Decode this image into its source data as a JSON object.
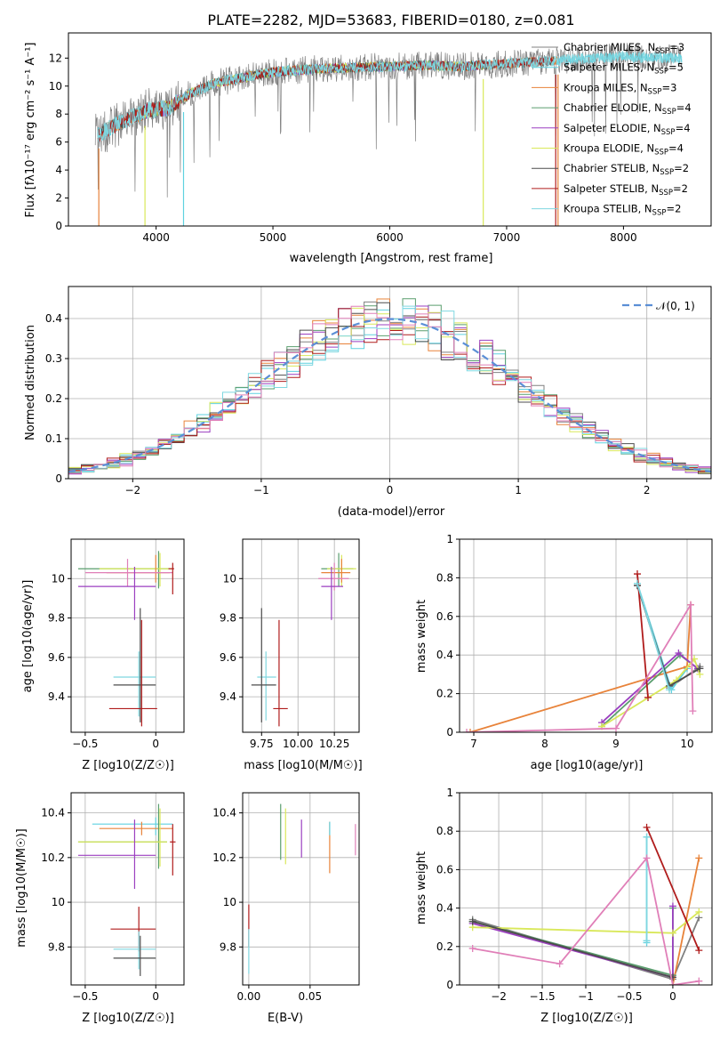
{
  "figure": {
    "title": "PLATE=2282, MJD=53683, FIBERID=0180, z=0.081",
    "palette": {
      "Chabrier MILES": "#808080",
      "Salpeter MILES": "#5fd1e0",
      "Kroupa MILES": "#e8833a",
      "Chabrier ELODIE": "#5a9e6e",
      "Salpeter ELODIE": "#9b3fc0",
      "Kroupa ELODIE": "#d9e85a",
      "Chabrier STELIB": "#4d4d4d",
      "Salpeter STELIB": "#b01c1c",
      "Kroupa STELIB": "#7fd7e0",
      "Pink": "#e07fb8"
    }
  },
  "chart_data": [
    {
      "id": "spectrum",
      "type": "line",
      "xlabel": "wavelength [Angstrom, rest frame]",
      "ylabel": "Flux [fλ10⁻¹⁷ erg cm⁻² s⁻¹ A⁻¹]",
      "xlim": [
        3250,
        8750
      ],
      "ylim": [
        0,
        13.8
      ],
      "xticks": [
        4000,
        5000,
        6000,
        7000,
        8000
      ],
      "yticks": [
        0,
        2,
        4,
        6,
        8,
        10,
        12
      ],
      "legend_position": "right",
      "legend": [
        {
          "text": "Chabrier MILES, N",
          "sub": "SSP",
          "suffix": "=3",
          "color": "#808080"
        },
        {
          "text": "Salpeter MILES, N",
          "sub": "SSP",
          "suffix": "=5",
          "color": "#5fd1e0"
        },
        {
          "text": "Kroupa MILES, N",
          "sub": "SSP",
          "suffix": "=3",
          "color": "#e8833a"
        },
        {
          "text": "Chabrier ELODIE, N",
          "sub": "SSP",
          "suffix": "=4",
          "color": "#5a9e6e"
        },
        {
          "text": "Salpeter ELODIE, N",
          "sub": "SSP",
          "suffix": "=4",
          "color": "#9b3fc0"
        },
        {
          "text": "Kroupa ELODIE, N",
          "sub": "SSP",
          "suffix": "=4",
          "color": "#d9e85a"
        },
        {
          "text": "Chabrier STELIB, N",
          "sub": "SSP",
          "suffix": "=2",
          "color": "#4d4d4d"
        },
        {
          "text": "Salpeter STELIB, N",
          "sub": "SSP",
          "suffix": "=2",
          "color": "#b01c1c"
        },
        {
          "text": "Kroupa STELIB, N",
          "sub": "SSP",
          "suffix": "=2",
          "color": "#7fd7e0"
        }
      ],
      "continuum": [
        [
          3500,
          6.5
        ],
        [
          3650,
          7.2
        ],
        [
          3800,
          7.8
        ],
        [
          3950,
          8.3
        ],
        [
          4100,
          8.4
        ],
        [
          4300,
          9.5
        ],
        [
          4500,
          10.2
        ],
        [
          4800,
          10.7
        ],
        [
          5000,
          11.0
        ],
        [
          5300,
          11.2
        ],
        [
          5600,
          11.3
        ],
        [
          6000,
          11.4
        ],
        [
          6300,
          11.5
        ],
        [
          6600,
          11.4
        ],
        [
          7000,
          11.6
        ],
        [
          7400,
          11.8
        ],
        [
          7700,
          12.0
        ],
        [
          8000,
          12.1
        ],
        [
          8300,
          12.0
        ],
        [
          8500,
          12.0
        ]
      ],
      "series": [
        {
          "name": "Chabrier MILES",
          "color": "#808080",
          "xrange": [
            3480,
            8500
          ],
          "noise": 1.0
        },
        {
          "name": "Salpeter MILES",
          "color": "#5fd1e0",
          "xrange": [
            3500,
            8500
          ],
          "noise": 0.35
        },
        {
          "name": "Kroupa MILES",
          "color": "#e8833a",
          "xrange": [
            3500,
            7440
          ],
          "noise": 0.35
        },
        {
          "name": "Chabrier ELODIE",
          "color": "#5a9e6e",
          "xrange": [
            3900,
            6800
          ],
          "noise": 0.35
        },
        {
          "name": "Salpeter ELODIE",
          "color": "#9b3fc0",
          "xrange": [
            3900,
            6800
          ],
          "noise": 0.35
        },
        {
          "name": "Kroupa ELODIE",
          "color": "#d9e85a",
          "xrange": [
            3900,
            6800
          ],
          "noise": 0.35
        },
        {
          "name": "Chabrier STELIB",
          "color": "#4d4d4d",
          "xrange": [
            3500,
            7400
          ],
          "noise": 0.35
        },
        {
          "name": "Salpeter STELIB",
          "color": "#b01c1c",
          "xrange": [
            3500,
            7400
          ],
          "noise": 0.35
        },
        {
          "name": "Kroupa STELIB",
          "color": "#7fd7e0",
          "xrange": [
            3500,
            8500
          ],
          "noise": 0.4
        }
      ],
      "drops": [
        {
          "x": 3510,
          "color": "#e8833a"
        },
        {
          "x": 3905,
          "color": "#d9e85a"
        },
        {
          "x": 4235,
          "color": "#5fd1e0"
        },
        {
          "x": 6800,
          "color": "#d9e85a"
        },
        {
          "x": 7420,
          "color": "#b01c1c"
        },
        {
          "x": 7440,
          "color": "#e8833a"
        }
      ]
    },
    {
      "id": "residual-histogram",
      "type": "bar",
      "xlabel": "(data-model)/error",
      "ylabel": "Normed distribution",
      "xlim": [
        -2.5,
        2.5
      ],
      "ylim": [
        0,
        0.48
      ],
      "xticks": [
        -2,
        -1,
        0,
        1,
        2
      ],
      "yticks": [
        0.0,
        0.1,
        0.2,
        0.3,
        0.4
      ],
      "legend_position": "top-right",
      "legend_label": "𝒩(0, 1)",
      "reference_curve": {
        "name": "N(0,1)",
        "color": "#5b8fd6",
        "style": "dashed"
      },
      "bin_width": 0.1,
      "series_colors": [
        "#808080",
        "#5fd1e0",
        "#e8833a",
        "#5a9e6e",
        "#9b3fc0",
        "#d9e85a",
        "#4d4d4d",
        "#b01c1c",
        "#7fd7e0",
        "#e07fb8"
      ]
    },
    {
      "id": "age-vs-Z",
      "type": "errorbar",
      "xlabel": "Z [log10(Z/Z☉)]",
      "ylabel": "age [log10(age/yr)]",
      "xlim": [
        -0.6,
        0.2
      ],
      "ylim": [
        9.22,
        10.2
      ],
      "xticks": [
        -0.5,
        0.0
      ],
      "yticks": [
        9.4,
        9.6,
        9.8,
        10.0
      ],
      "points": [
        {
          "x": 0.02,
          "y": 10.05,
          "x0": -0.55,
          "x1": 0.1,
          "y0": 9.95,
          "y1": 10.14,
          "color": "#5a9e6e"
        },
        {
          "x": 0.03,
          "y": 10.05,
          "x0": -0.4,
          "x1": 0.12,
          "y0": 9.96,
          "y1": 10.13,
          "color": "#d9e85a"
        },
        {
          "x": 0.0,
          "y": 10.03,
          "x0": -0.35,
          "x1": 0.1,
          "y0": 9.98,
          "y1": 10.12,
          "color": "#e8833a"
        },
        {
          "x": -0.2,
          "y": 10.03,
          "x0": -0.5,
          "x1": 0.12,
          "y0": 9.96,
          "y1": 10.1,
          "color": "#e07fb8"
        },
        {
          "x": -0.15,
          "y": 9.96,
          "x0": -0.55,
          "x1": 0.0,
          "y0": 9.79,
          "y1": 10.06,
          "color": "#9b3fc0"
        },
        {
          "x": 0.12,
          "y": 10.05,
          "x0": 0.09,
          "x1": 0.13,
          "y0": 9.92,
          "y1": 10.08,
          "color": "#b01c1c"
        },
        {
          "x": -0.12,
          "y": 9.5,
          "x0": -0.3,
          "x1": 0.0,
          "y0": 9.3,
          "y1": 9.63,
          "color": "#7fd7e0"
        },
        {
          "x": -0.11,
          "y": 9.46,
          "x0": -0.3,
          "x1": 0.0,
          "y0": 9.27,
          "y1": 9.85,
          "color": "#4d4d4d"
        },
        {
          "x": -0.1,
          "y": 9.34,
          "x0": -0.33,
          "x1": 0.01,
          "y0": 9.25,
          "y1": 9.79,
          "color": "#b01c1c"
        }
      ]
    },
    {
      "id": "age-vs-mass",
      "type": "errorbar",
      "xlabel": "mass [log10(M/M☉)]",
      "ylabel": "",
      "xlim": [
        9.62,
        10.42
      ],
      "ylim": [
        9.22,
        10.2
      ],
      "xticks": [
        9.75,
        10.0,
        10.25
      ],
      "xticklabels": [
        "9.75",
        "10.00",
        "10.25"
      ],
      "yticks": [
        9.4,
        9.6,
        9.8,
        10.0
      ],
      "points": [
        {
          "x": 10.28,
          "y": 10.05,
          "x0": 10.16,
          "x1": 10.38,
          "y0": 9.96,
          "y1": 10.13,
          "color": "#5a9e6e"
        },
        {
          "x": 10.3,
          "y": 10.05,
          "x0": 10.2,
          "x1": 10.4,
          "y0": 9.96,
          "y1": 10.12,
          "color": "#d9e85a"
        },
        {
          "x": 10.3,
          "y": 10.03,
          "x0": 10.16,
          "x1": 10.36,
          "y0": 9.98,
          "y1": 10.1,
          "color": "#e8833a"
        },
        {
          "x": 10.25,
          "y": 10.0,
          "x0": 10.14,
          "x1": 10.35,
          "y0": 9.94,
          "y1": 10.08,
          "color": "#e07fb8"
        },
        {
          "x": 10.23,
          "y": 9.96,
          "x0": 10.16,
          "x1": 10.31,
          "y0": 9.79,
          "y1": 10.06,
          "color": "#9b3fc0"
        },
        {
          "x": 9.78,
          "y": 9.5,
          "x0": 9.72,
          "x1": 9.85,
          "y0": 9.28,
          "y1": 9.63,
          "color": "#7fd7e0"
        },
        {
          "x": 9.75,
          "y": 9.46,
          "x0": 9.68,
          "x1": 9.85,
          "y0": 9.27,
          "y1": 9.85,
          "color": "#4d4d4d"
        },
        {
          "x": 9.87,
          "y": 9.34,
          "x0": 9.83,
          "x1": 9.93,
          "y0": 9.25,
          "y1": 9.79,
          "color": "#b01c1c"
        }
      ]
    },
    {
      "id": "mass-weight-vs-age",
      "type": "line",
      "xlabel": "age [log10(age/yr)]",
      "ylabel": "mass weight",
      "xlim": [
        6.8,
        10.35
      ],
      "ylim": [
        0,
        1.0
      ],
      "xticks": [
        7,
        8,
        9,
        10
      ],
      "yticks": [
        0.0,
        0.2,
        0.4,
        0.6,
        0.8,
        1.0
      ],
      "series": [
        {
          "name": "Chabrier MILES",
          "color": "#808080",
          "x": [
            9.3,
            9.75,
            10.18
          ],
          "y": [
            0.76,
            0.23,
            0.34
          ]
        },
        {
          "name": "Salpeter MILES",
          "color": "#5fd1e0",
          "x": [
            9.3,
            9.78,
            10.0
          ],
          "y": [
            0.77,
            0.22,
            0.33
          ]
        },
        {
          "name": "Kroupa MILES",
          "color": "#e8833a",
          "x": [
            6.95,
            10.0,
            10.05
          ],
          "y": [
            0.0,
            0.34,
            0.66
          ]
        },
        {
          "name": "Chabrier ELODIE",
          "color": "#5a9e6e",
          "x": [
            8.8,
            9.9,
            10.15
          ],
          "y": [
            0.03,
            0.4,
            0.33
          ]
        },
        {
          "name": "Salpeter ELODIE",
          "color": "#9b3fc0",
          "x": [
            8.8,
            9.88,
            10.15
          ],
          "y": [
            0.05,
            0.41,
            0.33
          ]
        },
        {
          "name": "Kroupa ELODIE",
          "color": "#d9e85a",
          "x": [
            8.8,
            9.85,
            10.1,
            10.18
          ],
          "y": [
            0.03,
            0.27,
            0.38,
            0.3
          ]
        },
        {
          "name": "Chabrier STELIB",
          "color": "#4d4d4d",
          "x": [
            9.3,
            9.75,
            10.18
          ],
          "y": [
            0.76,
            0.24,
            0.33
          ]
        },
        {
          "name": "Salpeter STELIB",
          "color": "#b01c1c",
          "x": [
            9.3,
            9.45
          ],
          "y": [
            0.82,
            0.18
          ]
        },
        {
          "name": "Kroupa STELIB",
          "color": "#7fd7e0",
          "x": [
            9.3,
            9.75
          ],
          "y": [
            0.77,
            0.22
          ]
        },
        {
          "name": "Pink",
          "color": "#e07fb8",
          "x": [
            6.9,
            9.0,
            10.05,
            10.08
          ],
          "y": [
            0.0,
            0.02,
            0.66,
            0.11
          ]
        }
      ]
    },
    {
      "id": "mass-vs-Z",
      "type": "errorbar",
      "xlabel": "Z [log10(Z/Z☉)]",
      "ylabel": "mass [log10(M/M☉)]",
      "xlim": [
        -0.6,
        0.2
      ],
      "ylim": [
        9.63,
        10.49
      ],
      "xticks": [
        -0.5,
        0.0
      ],
      "yticks": [
        9.8,
        10.0,
        10.2,
        10.4
      ],
      "points": [
        {
          "x": 0.0,
          "y": 10.35,
          "x0": -0.45,
          "x1": 0.12,
          "y0": 10.3,
          "y1": 10.38,
          "color": "#5fd1e0"
        },
        {
          "x": -0.1,
          "y": 10.33,
          "x0": -0.4,
          "x1": 0.12,
          "y0": 10.3,
          "y1": 10.36,
          "color": "#e8833a"
        },
        {
          "x": 0.02,
          "y": 10.27,
          "x0": -0.55,
          "x1": 0.08,
          "y0": 10.15,
          "y1": 10.44,
          "color": "#5a9e6e"
        },
        {
          "x": 0.03,
          "y": 10.27,
          "x0": -0.55,
          "x1": 0.08,
          "y0": 10.16,
          "y1": 10.42,
          "color": "#d9e85a"
        },
        {
          "x": -0.15,
          "y": 10.21,
          "x0": -0.55,
          "x1": 0.0,
          "y0": 10.06,
          "y1": 10.37,
          "color": "#9b3fc0"
        },
        {
          "x": 0.12,
          "y": 10.27,
          "x0": 0.1,
          "x1": 0.14,
          "y0": 10.12,
          "y1": 10.35,
          "color": "#b01c1c"
        },
        {
          "x": -0.12,
          "y": 9.88,
          "x0": -0.32,
          "x1": 0.0,
          "y0": 9.78,
          "y1": 9.98,
          "color": "#b01c1c"
        },
        {
          "x": -0.12,
          "y": 9.79,
          "x0": -0.3,
          "x1": 0.0,
          "y0": 9.7,
          "y1": 9.87,
          "color": "#7fd7e0"
        },
        {
          "x": -0.11,
          "y": 9.75,
          "x0": -0.3,
          "x1": 0.0,
          "y0": 9.67,
          "y1": 9.85,
          "color": "#4d4d4d"
        }
      ]
    },
    {
      "id": "mass-vs-ebv",
      "type": "errorbar",
      "xlabel": "E(B-V)",
      "ylabel": "",
      "xlim": [
        -0.005,
        0.09
      ],
      "ylim": [
        9.63,
        10.49
      ],
      "xticks": [
        0.0,
        0.05
      ],
      "xticklabels": [
        "0.00",
        "0.05"
      ],
      "yticks": [
        9.8,
        10.0,
        10.2,
        10.4
      ],
      "points": [
        {
          "x": 0.0,
          "y": 9.9,
          "y0": 9.8,
          "y1": 9.99,
          "color": "#b01c1c"
        },
        {
          "x": 0.0,
          "y": 9.8,
          "y0": 9.68,
          "y1": 9.88,
          "color": "#7fd7e0"
        },
        {
          "x": 0.026,
          "y": 10.27,
          "y0": 10.19,
          "y1": 10.44,
          "color": "#5a9e6e"
        },
        {
          "x": 0.03,
          "y": 10.27,
          "y0": 10.17,
          "y1": 10.42,
          "color": "#d9e85a"
        },
        {
          "x": 0.043,
          "y": 10.27,
          "y0": 10.2,
          "y1": 10.37,
          "color": "#9b3fc0"
        },
        {
          "x": 0.066,
          "y": 10.27,
          "y0": 10.13,
          "y1": 10.36,
          "color": "#e8833a"
        },
        {
          "x": 0.066,
          "y": 10.33,
          "y0": 10.3,
          "y1": 10.36,
          "color": "#5fd1e0"
        },
        {
          "x": 0.087,
          "y": 10.27,
          "y0": 10.21,
          "y1": 10.35,
          "color": "#e07fb8"
        }
      ]
    },
    {
      "id": "mass-weight-vs-Z",
      "type": "line",
      "xlabel": "Z [log10(Z/Z☉)]",
      "ylabel": "mass weight",
      "xlim": [
        -2.45,
        0.45
      ],
      "ylim": [
        0,
        1.0
      ],
      "xticks": [
        -2.0,
        -1.5,
        -1.0,
        -0.5,
        0.0
      ],
      "yticks": [
        0.0,
        0.2,
        0.4,
        0.6,
        0.8,
        1.0
      ],
      "series": [
        {
          "name": "Chabrier MILES",
          "color": "#808080",
          "x": [
            -2.3,
            0.0,
            0.3
          ],
          "y": [
            0.34,
            0.03,
            0.35
          ]
        },
        {
          "name": "Salpeter MILES",
          "color": "#5fd1e0",
          "x": [
            -0.3,
            -0.3
          ],
          "y": [
            0.77,
            0.22
          ]
        },
        {
          "name": "Kroupa MILES",
          "color": "#e8833a",
          "x": [
            0.0,
            0.3
          ],
          "y": [
            0.0,
            0.66
          ]
        },
        {
          "name": "Chabrier ELODIE",
          "color": "#5a9e6e",
          "x": [
            -2.3,
            0.0,
            0.0
          ],
          "y": [
            0.33,
            0.05,
            0.4
          ]
        },
        {
          "name": "Salpeter ELODIE",
          "color": "#9b3fc0",
          "x": [
            -2.3,
            0.0,
            0.0
          ],
          "y": [
            0.32,
            0.04,
            0.41
          ]
        },
        {
          "name": "Kroupa ELODIE",
          "color": "#d9e85a",
          "x": [
            -2.3,
            0.0,
            0.3
          ],
          "y": [
            0.3,
            0.27,
            0.38
          ]
        },
        {
          "name": "Chabrier STELIB",
          "color": "#4d4d4d",
          "x": [
            -2.3,
            0.0
          ],
          "y": [
            0.33,
            0.04
          ]
        },
        {
          "name": "Salpeter STELIB",
          "color": "#b01c1c",
          "x": [
            -0.3,
            0.3
          ],
          "y": [
            0.82,
            0.18
          ]
        },
        {
          "name": "Kroupa STELIB",
          "color": "#7fd7e0",
          "x": [
            -0.3,
            -0.3
          ],
          "y": [
            0.77,
            0.23
          ]
        },
        {
          "name": "Pink",
          "color": "#e07fb8",
          "x": [
            -2.3,
            -1.3,
            -0.3,
            0.0,
            0.3
          ],
          "y": [
            0.19,
            0.11,
            0.66,
            0.0,
            0.02
          ]
        }
      ]
    }
  ]
}
